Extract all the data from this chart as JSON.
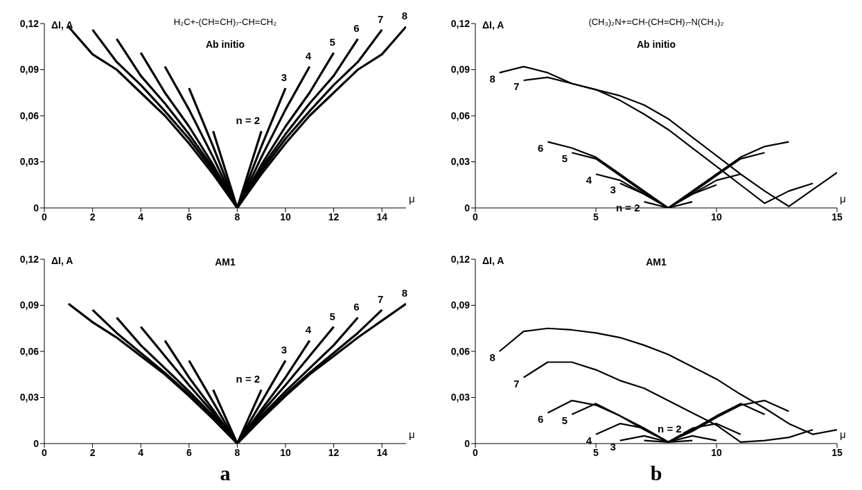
{
  "chart_data": [
    {
      "type": "line",
      "title": "H₂C+-(CH=CH)₇-CH=CH₂",
      "subtitle": "Ab initio",
      "ylabel": "ΔI, A",
      "xlabel": "μ",
      "marker": "none",
      "xlim": [
        0,
        15
      ],
      "xticks": [
        0,
        2,
        4,
        6,
        8,
        10,
        12,
        14
      ],
      "ylim": [
        0,
        0.12
      ],
      "yticks": [
        {
          "value": 0,
          "label": "0"
        },
        {
          "value": 0.03,
          "label": "0,03"
        },
        {
          "value": 0.06,
          "label": "0,06"
        },
        {
          "value": 0.09,
          "label": "0,09"
        },
        {
          "value": 0.12,
          "label": "0,12"
        }
      ],
      "series": [
        {
          "name": "n = 2",
          "color": "#000000",
          "x": [
            7,
            8,
            9
          ],
          "values": [
            0.05,
            0,
            0.05
          ]
        },
        {
          "name": "3",
          "color": "#000000",
          "x": [
            6,
            7,
            8,
            9,
            10
          ],
          "values": [
            0.078,
            0.04,
            0,
            0.04,
            0.078
          ]
        },
        {
          "name": "4",
          "color": "#000000",
          "x": [
            5,
            6,
            7,
            8,
            9,
            10,
            11
          ],
          "values": [
            0.092,
            0.064,
            0.033,
            0,
            0.033,
            0.064,
            0.092
          ]
        },
        {
          "name": "5",
          "color": "#000000",
          "x": [
            4,
            5,
            6,
            7,
            8,
            9,
            10,
            11,
            12
          ],
          "values": [
            0.101,
            0.075,
            0.053,
            0.028,
            0,
            0.028,
            0.053,
            0.075,
            0.101
          ]
        },
        {
          "name": "6",
          "color": "#000000",
          "x": [
            3,
            4,
            5,
            6,
            7,
            8,
            9,
            10,
            11,
            12,
            13
          ],
          "values": [
            0.11,
            0.086,
            0.068,
            0.048,
            0.026,
            0,
            0.026,
            0.048,
            0.068,
            0.086,
            0.11
          ]
        },
        {
          "name": "7",
          "color": "#000000",
          "x": [
            2,
            3,
            4,
            5,
            6,
            7,
            8,
            9,
            10,
            11,
            12,
            13,
            14
          ],
          "values": [
            0.116,
            0.095,
            0.08,
            0.063,
            0.045,
            0.024,
            0,
            0.024,
            0.045,
            0.063,
            0.08,
            0.095,
            0.116
          ]
        },
        {
          "name": "8",
          "color": "#000000",
          "x": [
            1,
            2,
            3,
            4,
            5,
            6,
            7,
            8,
            9,
            10,
            11,
            12,
            13,
            14,
            15
          ],
          "values": [
            0.118,
            0.1,
            0.09,
            0.075,
            0.06,
            0.042,
            0.022,
            0,
            0.022,
            0.042,
            0.06,
            0.075,
            0.09,
            0.1,
            0.118
          ]
        }
      ]
    },
    {
      "type": "line",
      "title": "(CH₃)₂N+=CH-(CH=CH)₇-N(CH₃)₂",
      "subtitle": "Ab initio",
      "ylabel": "ΔI, A",
      "xlabel": "μ",
      "marker": "none",
      "xlim": [
        0,
        15
      ],
      "xticks": [
        0,
        5,
        10,
        15
      ],
      "ylim": [
        0,
        0.12
      ],
      "yticks": [
        {
          "value": 0,
          "label": "0"
        },
        {
          "value": 0.03,
          "label": "0,03"
        },
        {
          "value": 0.06,
          "label": "0,06"
        },
        {
          "value": 0.09,
          "label": "0,09"
        },
        {
          "value": 0.12,
          "label": "0,12"
        }
      ],
      "series": [
        {
          "name": "n = 2",
          "color": "#000000",
          "x": [
            7,
            8,
            9
          ],
          "values": [
            0.004,
            0,
            0.004
          ]
        },
        {
          "name": "3",
          "color": "#000000",
          "x": [
            6,
            7,
            8,
            9,
            10
          ],
          "values": [
            0.016,
            0.009,
            0,
            0.009,
            0.015
          ]
        },
        {
          "name": "4",
          "color": "#000000",
          "x": [
            5,
            6,
            7,
            8,
            9,
            10,
            11
          ],
          "values": [
            0.022,
            0.018,
            0.009,
            0,
            0.009,
            0.018,
            0.022
          ]
        },
        {
          "name": "5",
          "color": "#000000",
          "x": [
            4,
            5,
            6,
            7,
            8,
            9,
            10,
            11,
            12
          ],
          "values": [
            0.036,
            0.032,
            0.021,
            0.01,
            0,
            0.01,
            0.021,
            0.032,
            0.036
          ]
        },
        {
          "name": "6",
          "color": "#000000",
          "x": [
            3,
            4,
            5,
            6,
            7,
            8,
            9,
            10,
            11,
            12,
            13
          ],
          "values": [
            0.043,
            0.039,
            0.033,
            0.022,
            0.011,
            0,
            0.011,
            0.022,
            0.033,
            0.04,
            0.043
          ]
        },
        {
          "name": "7",
          "color": "#000000",
          "x": [
            2,
            3,
            4,
            5,
            6,
            7,
            8,
            9,
            10,
            11,
            12,
            13,
            14
          ],
          "values": [
            0.083,
            0.085,
            0.081,
            0.077,
            0.07,
            0.061,
            0.051,
            0.039,
            0.027,
            0.015,
            0.003,
            0.011,
            0.016
          ]
        },
        {
          "name": "8",
          "color": "#000000",
          "x": [
            1,
            2,
            3,
            4,
            5,
            6,
            7,
            8,
            9,
            10,
            11,
            12,
            13,
            14,
            15
          ],
          "values": [
            0.088,
            0.092,
            0.088,
            0.081,
            0.077,
            0.073,
            0.067,
            0.058,
            0.046,
            0.034,
            0.022,
            0.011,
            0.001,
            0.012,
            0.023
          ]
        }
      ]
    },
    {
      "type": "line",
      "subtitle": "AM1",
      "ylabel": "ΔI, A",
      "xlabel": "μ",
      "marker": "none",
      "xlim": [
        0,
        15
      ],
      "xticks": [
        0,
        2,
        4,
        6,
        8,
        10,
        12,
        14
      ],
      "ylim": [
        0,
        0.12
      ],
      "yticks": [
        {
          "value": 0,
          "label": "0"
        },
        {
          "value": 0.03,
          "label": "0,03"
        },
        {
          "value": 0.06,
          "label": "0,06"
        },
        {
          "value": 0.09,
          "label": "0,09"
        },
        {
          "value": 0.12,
          "label": "0,12"
        }
      ],
      "annotations": [
        "a"
      ],
      "series": [
        {
          "name": "n = 2",
          "color": "#000000",
          "x": [
            7,
            8,
            9
          ],
          "values": [
            0.035,
            0,
            0.035
          ]
        },
        {
          "name": "3",
          "color": "#000000",
          "x": [
            6,
            7,
            8,
            9,
            10
          ],
          "values": [
            0.054,
            0.027,
            0,
            0.027,
            0.054
          ]
        },
        {
          "name": "4",
          "color": "#000000",
          "x": [
            5,
            6,
            7,
            8,
            9,
            10,
            11
          ],
          "values": [
            0.067,
            0.043,
            0.022,
            0,
            0.022,
            0.043,
            0.067
          ]
        },
        {
          "name": "5",
          "color": "#000000",
          "x": [
            4,
            5,
            6,
            7,
            8,
            9,
            10,
            11,
            12
          ],
          "values": [
            0.076,
            0.057,
            0.038,
            0.02,
            0,
            0.02,
            0.038,
            0.057,
            0.076
          ]
        },
        {
          "name": "6",
          "color": "#000000",
          "x": [
            3,
            4,
            5,
            6,
            7,
            8,
            9,
            10,
            11,
            12,
            13
          ],
          "values": [
            0.082,
            0.064,
            0.049,
            0.034,
            0.018,
            0,
            0.018,
            0.034,
            0.049,
            0.064,
            0.082
          ]
        },
        {
          "name": "7",
          "color": "#000000",
          "x": [
            2,
            3,
            4,
            5,
            6,
            7,
            8,
            9,
            10,
            11,
            12,
            13,
            14
          ],
          "values": [
            0.087,
            0.072,
            0.059,
            0.046,
            0.032,
            0.017,
            0,
            0.017,
            0.032,
            0.046,
            0.059,
            0.072,
            0.087
          ]
        },
        {
          "name": "8",
          "color": "#000000",
          "x": [
            1,
            2,
            3,
            4,
            5,
            6,
            7,
            8,
            9,
            10,
            11,
            12,
            13,
            14,
            15
          ],
          "values": [
            0.091,
            0.079,
            0.069,
            0.057,
            0.045,
            0.031,
            0.016,
            0,
            0.016,
            0.031,
            0.045,
            0.057,
            0.069,
            0.08,
            0.091
          ]
        }
      ]
    },
    {
      "type": "line",
      "subtitle": "AM1",
      "ylabel": "ΔI, A",
      "xlabel": "μ",
      "marker": "none",
      "xlim": [
        0,
        15
      ],
      "xticks": [
        0,
        5,
        10,
        15
      ],
      "ylim": [
        0,
        0.12
      ],
      "yticks": [
        {
          "value": 0,
          "label": "0"
        },
        {
          "value": 0.03,
          "label": "0,03"
        },
        {
          "value": 0.06,
          "label": "0,06"
        },
        {
          "value": 0.09,
          "label": "0,09"
        },
        {
          "value": 0.12,
          "label": "0,12"
        }
      ],
      "annotations": [
        "b"
      ],
      "series": [
        {
          "name": "n = 2",
          "color": "#000000",
          "x": [
            7,
            8,
            9
          ],
          "values": [
            0.002,
            0.001,
            0.002
          ]
        },
        {
          "name": "3",
          "color": "#000000",
          "x": [
            6,
            7,
            8,
            9,
            10
          ],
          "values": [
            0.002,
            0.005,
            0.001,
            0.005,
            0.002
          ]
        },
        {
          "name": "4",
          "color": "#000000",
          "x": [
            5,
            6,
            7,
            8,
            9,
            10,
            11
          ],
          "values": [
            0.006,
            0.013,
            0.01,
            0.001,
            0.01,
            0.013,
            0.006
          ]
        },
        {
          "name": "5",
          "color": "#000000",
          "x": [
            4,
            5,
            6,
            7,
            8,
            9,
            10,
            11,
            12
          ],
          "values": [
            0.019,
            0.026,
            0.018,
            0.009,
            0.001,
            0.009,
            0.018,
            0.026,
            0.019
          ]
        },
        {
          "name": "6",
          "color": "#000000",
          "x": [
            3,
            4,
            5,
            6,
            7,
            8,
            9,
            10,
            11,
            12,
            13
          ],
          "values": [
            0.02,
            0.028,
            0.025,
            0.018,
            0.01,
            0.001,
            0.008,
            0.017,
            0.025,
            0.028,
            0.021
          ]
        },
        {
          "name": "7",
          "color": "#000000",
          "x": [
            2,
            3,
            4,
            5,
            6,
            7,
            8,
            9,
            10,
            11,
            12,
            13,
            14
          ],
          "values": [
            0.043,
            0.053,
            0.053,
            0.048,
            0.041,
            0.036,
            0.028,
            0.02,
            0.012,
            0.001,
            0.002,
            0.004,
            0.009
          ]
        },
        {
          "name": "8",
          "color": "#000000",
          "x": [
            1,
            2,
            3,
            4,
            5,
            6,
            7,
            8,
            9,
            10,
            11,
            12,
            13,
            14,
            15
          ],
          "values": [
            0.06,
            0.073,
            0.075,
            0.074,
            0.072,
            0.069,
            0.064,
            0.058,
            0.05,
            0.042,
            0.032,
            0.023,
            0.013,
            0.006,
            0.009
          ]
        }
      ]
    }
  ]
}
